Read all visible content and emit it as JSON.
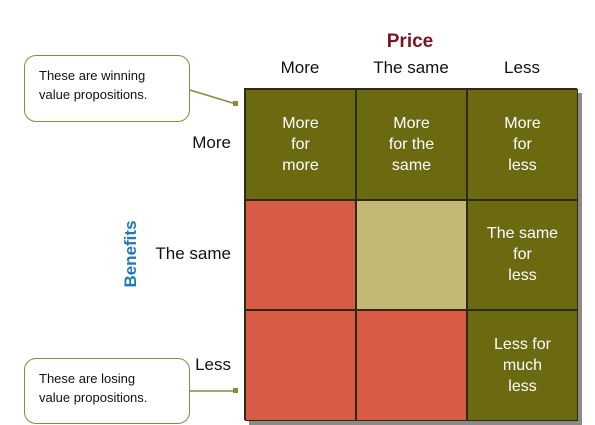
{
  "diagram": {
    "price_title": "Price",
    "benefits_title": "Benefits",
    "price_columns": [
      "More",
      "The same",
      "Less"
    ],
    "benefit_rows": [
      "More",
      "The same",
      "Less"
    ],
    "cells": [
      [
        "More\nfor\nmore",
        "More\nfor the\nsame",
        "More\nfor\nless"
      ],
      [
        "",
        "",
        "The same\nfor\nless"
      ],
      [
        "",
        "",
        "Less for\nmuch\nless"
      ]
    ],
    "cell_colors": [
      [
        "#6b6a11",
        "#6b6a11",
        "#6b6a11"
      ],
      [
        "#d85c45",
        "#c3b874",
        "#6b6a11"
      ],
      [
        "#d85c45",
        "#d85c45",
        "#6b6a11"
      ]
    ],
    "title_colors": {
      "price": "#7a1424",
      "benefits": "#1f78b8"
    },
    "callouts": {
      "winning": "These are winning\nvalue propositions.",
      "losing": "These are losing\nvalue propositions."
    }
  }
}
